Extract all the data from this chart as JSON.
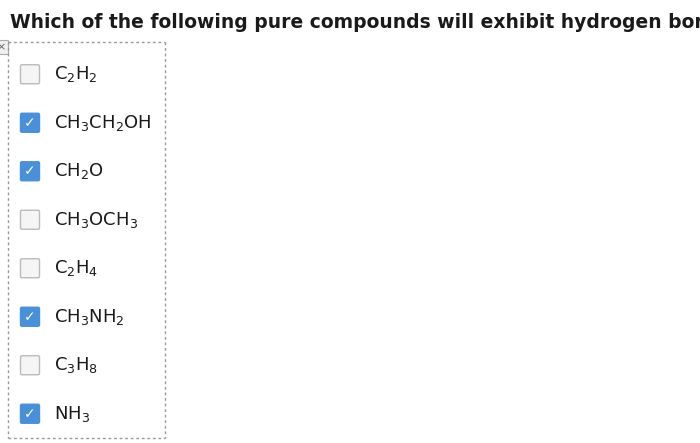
{
  "title": "Which of the following pure compounds will exhibit hydrogen bonding?",
  "title_fontsize": 13.5,
  "background_color": "#ffffff",
  "items": [
    {
      "label_parts": [
        [
          "C",
          0
        ],
        [
          "2",
          -1
        ],
        [
          "H",
          0
        ],
        [
          "2",
          -1
        ]
      ],
      "checked": false
    },
    {
      "label_parts": [
        [
          "CH",
          0
        ],
        [
          "3",
          -1
        ],
        [
          "CH",
          0
        ],
        [
          "2",
          -1
        ],
        [
          "OH",
          0
        ]
      ],
      "checked": true
    },
    {
      "label_parts": [
        [
          "CH",
          0
        ],
        [
          "2",
          -1
        ],
        [
          "O",
          0
        ]
      ],
      "checked": true
    },
    {
      "label_parts": [
        [
          "CH",
          0
        ],
        [
          "3",
          -1
        ],
        [
          "OCH",
          0
        ],
        [
          "3",
          -1
        ]
      ],
      "checked": false
    },
    {
      "label_parts": [
        [
          "C",
          0
        ],
        [
          "2",
          -1
        ],
        [
          "H",
          0
        ],
        [
          "4",
          -1
        ]
      ],
      "checked": false
    },
    {
      "label_parts": [
        [
          "CH",
          0
        ],
        [
          "3",
          -1
        ],
        [
          "NH",
          0
        ],
        [
          "2",
          -1
        ]
      ],
      "checked": true
    },
    {
      "label_parts": [
        [
          "C",
          0
        ],
        [
          "3",
          -1
        ],
        [
          "H",
          0
        ],
        [
          "8",
          -1
        ]
      ],
      "checked": false
    },
    {
      "label_parts": [
        [
          "NH",
          0
        ],
        [
          "3",
          -1
        ]
      ],
      "checked": true
    }
  ],
  "checkbox_color_checked": "#4a90d9",
  "checkbox_border_unchecked": "#bbbbbb",
  "check_color": "#ffffff",
  "text_fontsize": 13,
  "text_color": "#1a1a1a",
  "dot_color": "#999999",
  "x_button_color": "#888888"
}
